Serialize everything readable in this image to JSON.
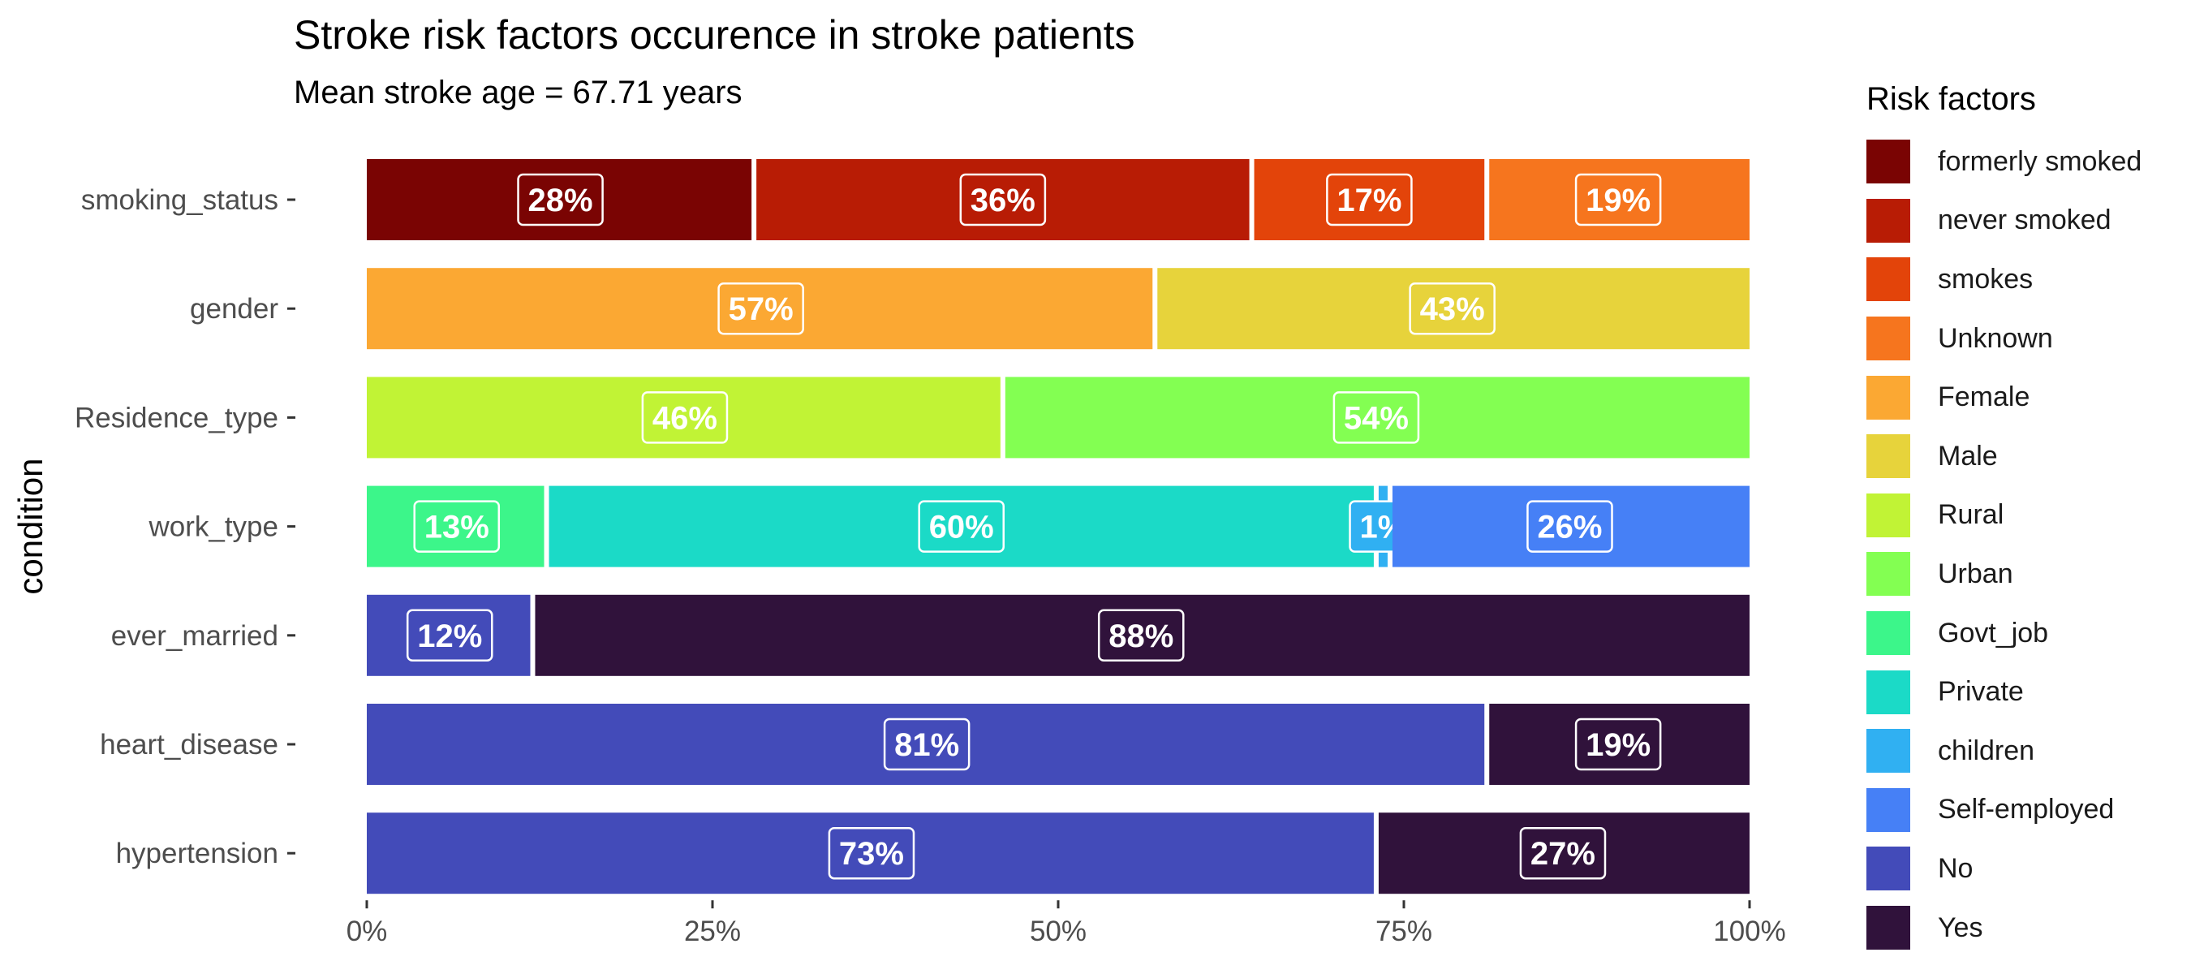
{
  "chart_data": {
    "type": "bar",
    "orientation": "horizontal",
    "stacked": "percent",
    "title": "Stroke risk factors occurence in stroke patients",
    "subtitle": "Mean stroke age =  67.71 years",
    "ylabel": "condition",
    "xlabel": "",
    "xlim": [
      0,
      100
    ],
    "x_ticks": [
      "0%",
      "25%",
      "50%",
      "75%",
      "100%"
    ],
    "x_tick_values": [
      0,
      25,
      50,
      75,
      100
    ],
    "legend_title": "Risk factors",
    "legend_position": "right",
    "grid": false,
    "legend": [
      {
        "name": "formerly smoked",
        "color": "#7a0403"
      },
      {
        "name": "never smoked",
        "color": "#b81c05"
      },
      {
        "name": "smokes",
        "color": "#e3440a"
      },
      {
        "name": "Unknown",
        "color": "#f6751e"
      },
      {
        "name": "Female",
        "color": "#fba833"
      },
      {
        "name": "Male",
        "color": "#e7d33b"
      },
      {
        "name": "Rural",
        "color": "#c1f335"
      },
      {
        "name": "Urban",
        "color": "#83ff52"
      },
      {
        "name": "Govt_job",
        "color": "#3cf68a"
      },
      {
        "name": "Private",
        "color": "#1bdac7"
      },
      {
        "name": "children",
        "color": "#30b0f2"
      },
      {
        "name": "Self-employed",
        "color": "#4680f6"
      },
      {
        "name": "No",
        "color": "#434bb9"
      },
      {
        "name": "Yes",
        "color": "#30123b"
      }
    ],
    "categories": [
      "smoking_status",
      "gender",
      "Residence_type",
      "work_type",
      "ever_married",
      "heart_disease",
      "hypertension"
    ],
    "bars": [
      {
        "category": "smoking_status",
        "segments": [
          {
            "name": "formerly smoked",
            "value": 28,
            "label": "28%"
          },
          {
            "name": "never smoked",
            "value": 36,
            "label": "36%"
          },
          {
            "name": "smokes",
            "value": 17,
            "label": "17%"
          },
          {
            "name": "Unknown",
            "value": 19,
            "label": "19%"
          }
        ]
      },
      {
        "category": "gender",
        "segments": [
          {
            "name": "Female",
            "value": 57,
            "label": "57%"
          },
          {
            "name": "Male",
            "value": 43,
            "label": "43%"
          }
        ]
      },
      {
        "category": "Residence_type",
        "segments": [
          {
            "name": "Rural",
            "value": 46,
            "label": "46%"
          },
          {
            "name": "Urban",
            "value": 54,
            "label": "54%"
          }
        ]
      },
      {
        "category": "work_type",
        "segments": [
          {
            "name": "Govt_job",
            "value": 13,
            "label": "13%"
          },
          {
            "name": "Private",
            "value": 60,
            "label": "60%"
          },
          {
            "name": "children",
            "value": 1,
            "label": "1%"
          },
          {
            "name": "Self-employed",
            "value": 26,
            "label": "26%"
          }
        ]
      },
      {
        "category": "ever_married",
        "segments": [
          {
            "name": "No",
            "value": 12,
            "label": "12%"
          },
          {
            "name": "Yes",
            "value": 88,
            "label": "88%"
          }
        ]
      },
      {
        "category": "heart_disease",
        "segments": [
          {
            "name": "No",
            "value": 81,
            "label": "81%"
          },
          {
            "name": "Yes",
            "value": 19,
            "label": "19%"
          }
        ]
      },
      {
        "category": "hypertension",
        "segments": [
          {
            "name": "No",
            "value": 73,
            "label": "73%"
          },
          {
            "name": "Yes",
            "value": 27,
            "label": "27%"
          }
        ]
      }
    ]
  }
}
